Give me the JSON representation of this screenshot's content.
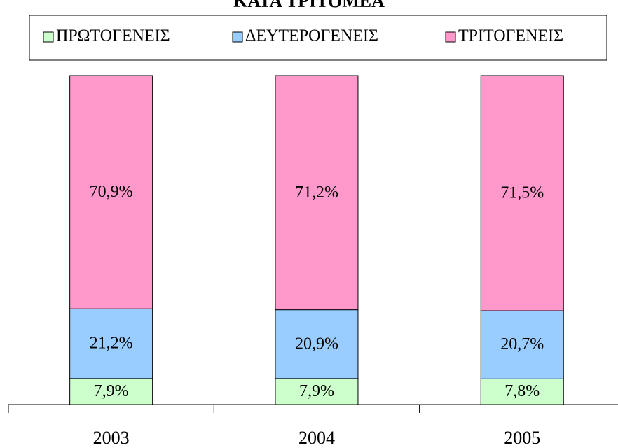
{
  "chart_data": {
    "type": "stacked_bar",
    "title": "ΚΑΤΑ ΤΡΙΤΟΜΕΑ",
    "categories": [
      "2003",
      "2004",
      "2005"
    ],
    "series": [
      {
        "name": "ΠΡΩΤΟΓΕΝΕΙΣ",
        "color": "#ccffcc",
        "values": [
          7.9,
          7.9,
          7.8
        ],
        "value_labels": [
          "7,9%",
          "7,9%",
          "7,8%"
        ]
      },
      {
        "name": "ΔΕΥΤΕΡΟΓΕΝΕΙΣ",
        "color": "#99ccff",
        "values": [
          21.2,
          20.9,
          20.7
        ],
        "value_labels": [
          "21,2%",
          "20,9%",
          "20,7%"
        ]
      },
      {
        "name": "ΤΡΙΤΟΓΕΝΕΙΣ",
        "color": "#ff99cc",
        "values": [
          70.9,
          71.2,
          71.5
        ],
        "value_labels": [
          "70,9%",
          "71,2%",
          "71,5%"
        ]
      }
    ],
    "ylim": [
      0,
      100
    ],
    "legend": "top"
  }
}
